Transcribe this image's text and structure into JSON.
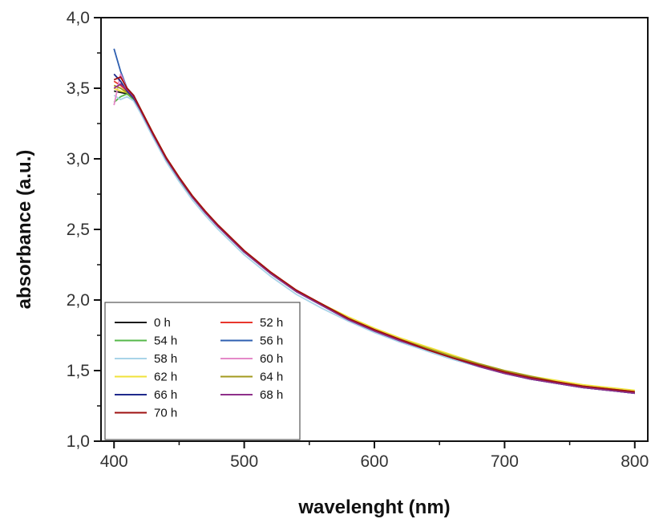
{
  "chart_data": {
    "type": "line",
    "xlabel": "wavelenght  (nm)",
    "ylabel": "absorbance (a.u.)",
    "xlim": [
      390,
      810
    ],
    "ylim": [
      1.0,
      4.0
    ],
    "x_ticks": [
      400,
      500,
      600,
      700,
      800
    ],
    "x_tick_labels": [
      "400",
      "500",
      "600",
      "700",
      "800"
    ],
    "y_ticks": [
      1.0,
      1.5,
      2.0,
      2.5,
      3.0,
      3.5,
      4.0
    ],
    "y_tick_labels": [
      "1,0",
      "1,5",
      "2,0",
      "2,5",
      "3,0",
      "3,5",
      "4,0"
    ],
    "grid": false,
    "legend_position": "bottom-left",
    "x": [
      400,
      405,
      410,
      415,
      420,
      430,
      440,
      450,
      460,
      470,
      480,
      500,
      520,
      540,
      560,
      580,
      600,
      620,
      640,
      660,
      680,
      700,
      720,
      740,
      760,
      780,
      800
    ],
    "series": [
      {
        "name": "0 h",
        "color": "#1a1a1a",
        "values": [
          3.48,
          3.47,
          3.46,
          3.43,
          3.35,
          3.17,
          3.0,
          2.86,
          2.73,
          2.62,
          2.52,
          2.34,
          2.19,
          2.06,
          1.96,
          1.86,
          1.78,
          1.71,
          1.65,
          1.59,
          1.53,
          1.48,
          1.44,
          1.41,
          1.38,
          1.36,
          1.34
        ]
      },
      {
        "name": "52 h",
        "color": "#e8362c",
        "values": [
          3.55,
          3.52,
          3.48,
          3.44,
          3.36,
          3.18,
          3.01,
          2.87,
          2.74,
          2.63,
          2.53,
          2.35,
          2.2,
          2.07,
          1.96,
          1.87,
          1.78,
          1.71,
          1.65,
          1.59,
          1.54,
          1.49,
          1.45,
          1.42,
          1.39,
          1.37,
          1.35
        ]
      },
      {
        "name": "54 h",
        "color": "#55b84a",
        "values": [
          3.4,
          3.44,
          3.46,
          3.42,
          3.34,
          3.16,
          2.99,
          2.85,
          2.73,
          2.62,
          2.52,
          2.34,
          2.19,
          2.06,
          1.97,
          1.87,
          1.79,
          1.72,
          1.66,
          1.6,
          1.54,
          1.49,
          1.45,
          1.42,
          1.39,
          1.37,
          1.35
        ]
      },
      {
        "name": "56 h",
        "color": "#2e5fb0",
        "values": [
          3.78,
          3.62,
          3.5,
          3.45,
          3.36,
          3.17,
          3.0,
          2.86,
          2.73,
          2.62,
          2.52,
          2.34,
          2.19,
          2.06,
          1.96,
          1.86,
          1.78,
          1.71,
          1.64,
          1.58,
          1.53,
          1.48,
          1.44,
          1.41,
          1.38,
          1.36,
          1.34
        ]
      },
      {
        "name": "58 h",
        "color": "#a9d4e8",
        "values": [
          3.45,
          3.42,
          3.44,
          3.41,
          3.33,
          3.15,
          2.98,
          2.84,
          2.71,
          2.6,
          2.5,
          2.32,
          2.17,
          2.04,
          1.94,
          1.85,
          1.77,
          1.7,
          1.64,
          1.58,
          1.53,
          1.48,
          1.44,
          1.41,
          1.38,
          1.36,
          1.34
        ]
      },
      {
        "name": "60 h",
        "color": "#e58ac8",
        "values": [
          3.38,
          3.6,
          3.5,
          3.44,
          3.35,
          3.17,
          3.0,
          2.86,
          2.73,
          2.62,
          2.52,
          2.34,
          2.19,
          2.06,
          1.96,
          1.86,
          1.78,
          1.71,
          1.65,
          1.59,
          1.54,
          1.49,
          1.45,
          1.42,
          1.39,
          1.37,
          1.35
        ]
      },
      {
        "name": "62 h",
        "color": "#f0e23a",
        "values": [
          3.5,
          3.48,
          3.47,
          3.44,
          3.36,
          3.18,
          3.01,
          2.87,
          2.74,
          2.63,
          2.53,
          2.35,
          2.2,
          2.07,
          1.97,
          1.88,
          1.8,
          1.73,
          1.67,
          1.61,
          1.55,
          1.5,
          1.46,
          1.43,
          1.4,
          1.38,
          1.36
        ]
      },
      {
        "name": "64 h",
        "color": "#a39a1e",
        "values": [
          3.52,
          3.5,
          3.47,
          3.43,
          3.35,
          3.17,
          3.0,
          2.86,
          2.73,
          2.62,
          2.52,
          2.34,
          2.19,
          2.06,
          1.97,
          1.87,
          1.79,
          1.72,
          1.66,
          1.6,
          1.55,
          1.5,
          1.46,
          1.42,
          1.39,
          1.37,
          1.35
        ]
      },
      {
        "name": "66 h",
        "color": "#1f2a8c",
        "values": [
          3.6,
          3.55,
          3.48,
          3.43,
          3.35,
          3.17,
          3.0,
          2.86,
          2.73,
          2.62,
          2.52,
          2.34,
          2.19,
          2.06,
          1.96,
          1.86,
          1.78,
          1.71,
          1.65,
          1.59,
          1.53,
          1.48,
          1.44,
          1.41,
          1.38,
          1.36,
          1.34
        ]
      },
      {
        "name": "68 h",
        "color": "#8e2f8a",
        "values": [
          3.5,
          3.53,
          3.49,
          3.44,
          3.35,
          3.17,
          3.0,
          2.86,
          2.73,
          2.62,
          2.52,
          2.34,
          2.19,
          2.06,
          1.96,
          1.86,
          1.78,
          1.71,
          1.65,
          1.59,
          1.53,
          1.48,
          1.44,
          1.41,
          1.38,
          1.36,
          1.34
        ]
      },
      {
        "name": "70 h",
        "color": "#9e1010",
        "values": [
          3.56,
          3.58,
          3.5,
          3.45,
          3.36,
          3.18,
          3.01,
          2.87,
          2.74,
          2.63,
          2.53,
          2.35,
          2.2,
          2.07,
          1.97,
          1.87,
          1.79,
          1.72,
          1.65,
          1.59,
          1.54,
          1.49,
          1.45,
          1.42,
          1.39,
          1.37,
          1.35
        ]
      }
    ]
  }
}
